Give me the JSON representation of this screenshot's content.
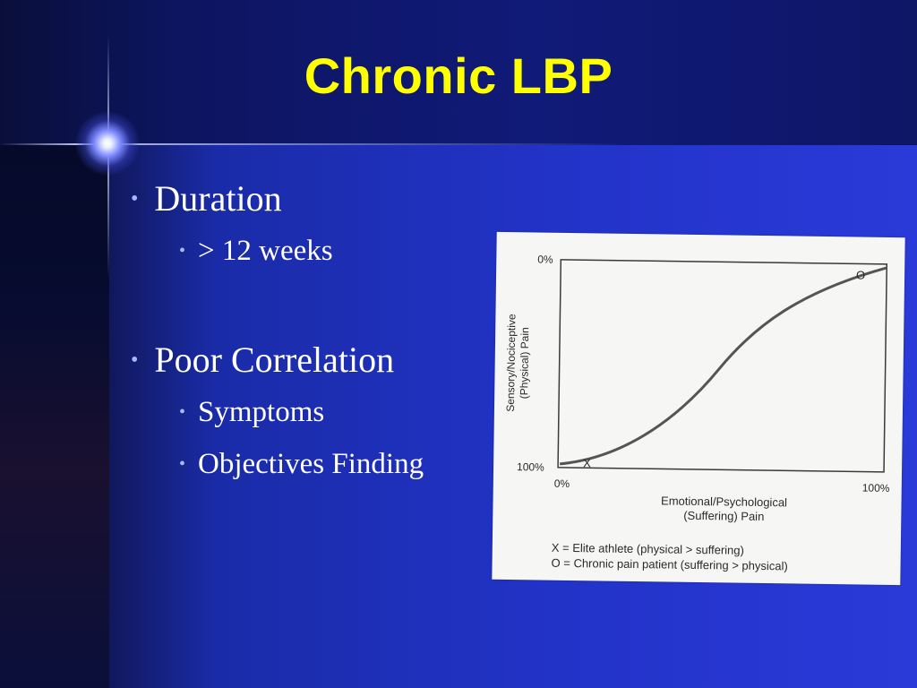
{
  "slide": {
    "title": "Chronic LBP",
    "bullets": [
      {
        "text": "Duration",
        "sub": [
          "> 12 weeks"
        ]
      },
      {
        "text": "Poor Correlation",
        "sub": [
          "Symptoms",
          "Objectives Finding"
        ]
      }
    ],
    "bullet_glyph": "•"
  },
  "figure": {
    "ytick_top": "0%",
    "ytick_bottom": "100%",
    "xtick_left": "0%",
    "xtick_right": "100%",
    "ylabel_line1": "Sensory/Nociceptive",
    "ylabel_line2": "(Physical) Pain",
    "xlabel_line1": "Emotional/Psychological",
    "xlabel_line2": "(Suffering) Pain",
    "marker_x": "X",
    "marker_o": "O",
    "legend_line1": "X = Elite athlete (physical > suffering)",
    "legend_line2": "O = Chronic pain patient (suffering > physical)"
  },
  "colors": {
    "title": "#ffff00",
    "background": "#1a2ba8",
    "bullet_dot": "#a8b8ff"
  }
}
